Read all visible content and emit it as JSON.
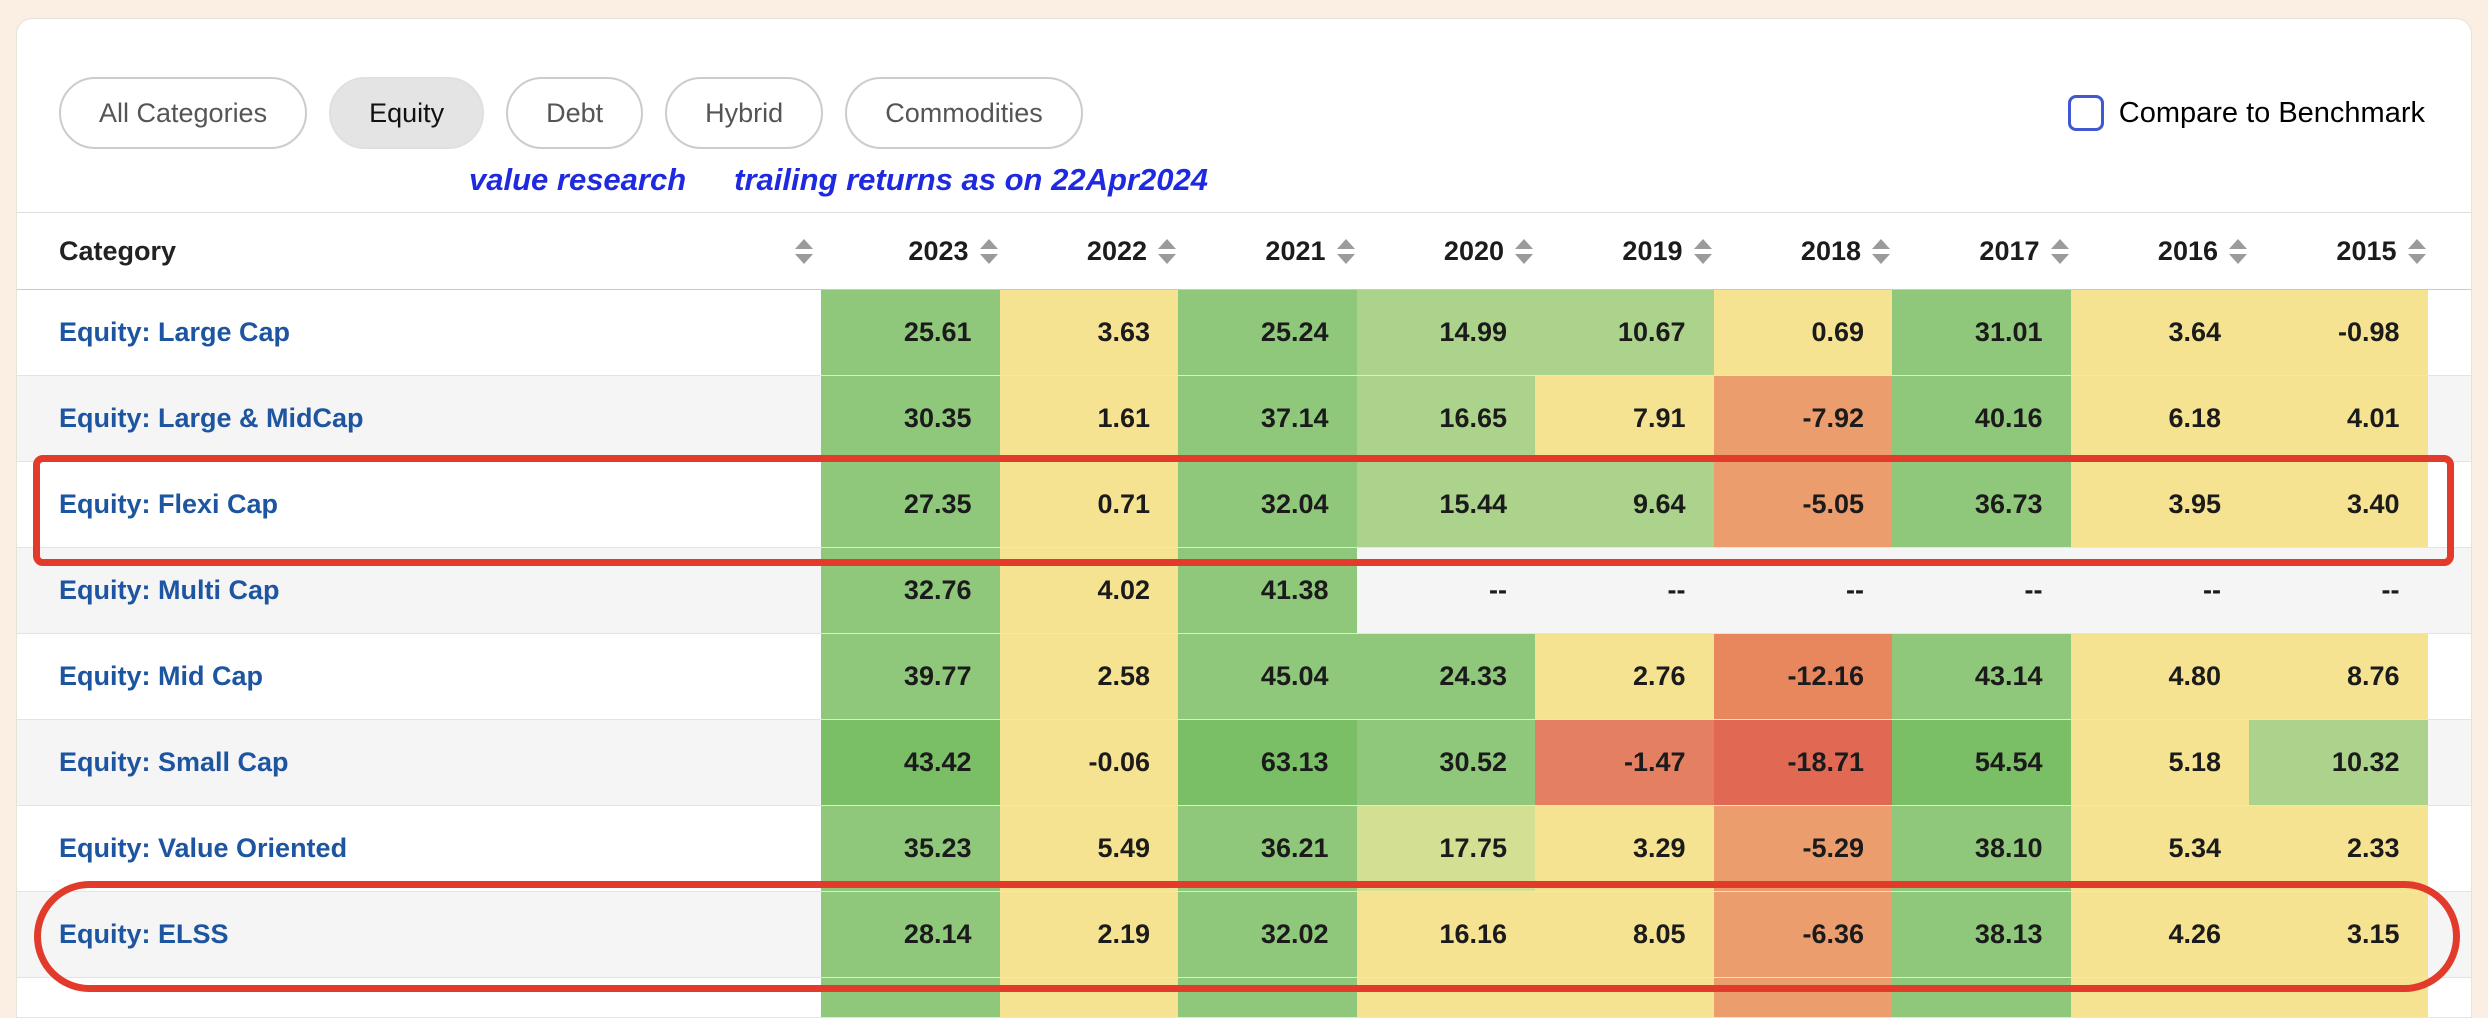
{
  "filters": {
    "pills": [
      {
        "label": "All Categories",
        "active": false
      },
      {
        "label": "Equity",
        "active": true
      },
      {
        "label": "Debt",
        "active": false
      },
      {
        "label": "Hybrid",
        "active": false
      },
      {
        "label": "Commodities",
        "active": false
      }
    ]
  },
  "benchmark": {
    "label": "Compare to Benchmark",
    "checked": false,
    "accent_color": "#4059d0"
  },
  "note": {
    "part1": "value research",
    "part2": "trailing returns as on 22Apr2024",
    "color": "#1f2ae0"
  },
  "table": {
    "category_header": "Category",
    "year_columns": [
      "2023",
      "2022",
      "2021",
      "2020",
      "2019",
      "2018",
      "2017",
      "2016",
      "2015"
    ],
    "empty_value": "--",
    "palette": {
      "g": "#8fc87b",
      "gs": "#7abf66",
      "gl": "#abd38b",
      "yg": "#d3e094",
      "y": "#f5e392",
      "o": "#eb9d6e",
      "od": "#e8865e",
      "rs": "#e47f61",
      "r": "#e16852",
      "w": "transparent"
    },
    "rows": [
      {
        "category": "Equity: Large Cap",
        "values": [
          "25.61",
          "3.63",
          "25.24",
          "14.99",
          "10.67",
          "0.69",
          "31.01",
          "3.64",
          "-0.98"
        ],
        "colors": [
          "g",
          "y",
          "g",
          "gl",
          "gl",
          "y",
          "g",
          "y",
          "y"
        ]
      },
      {
        "category": "Equity: Large & MidCap",
        "values": [
          "30.35",
          "1.61",
          "37.14",
          "16.65",
          "7.91",
          "-7.92",
          "40.16",
          "6.18",
          "4.01"
        ],
        "colors": [
          "g",
          "y",
          "g",
          "gl",
          "y",
          "o",
          "g",
          "y",
          "y"
        ]
      },
      {
        "category": "Equity: Flexi Cap",
        "values": [
          "27.35",
          "0.71",
          "32.04",
          "15.44",
          "9.64",
          "-5.05",
          "36.73",
          "3.95",
          "3.40"
        ],
        "colors": [
          "g",
          "y",
          "g",
          "gl",
          "gl",
          "o",
          "g",
          "y",
          "y"
        ]
      },
      {
        "category": "Equity: Multi Cap",
        "values": [
          "32.76",
          "4.02",
          "41.38",
          "--",
          "--",
          "--",
          "--",
          "--",
          "--"
        ],
        "colors": [
          "g",
          "y",
          "g",
          "w",
          "w",
          "w",
          "w",
          "w",
          "w"
        ]
      },
      {
        "category": "Equity: Mid Cap",
        "values": [
          "39.77",
          "2.58",
          "45.04",
          "24.33",
          "2.76",
          "-12.16",
          "43.14",
          "4.80",
          "8.76"
        ],
        "colors": [
          "g",
          "y",
          "g",
          "g",
          "y",
          "od",
          "g",
          "y",
          "y"
        ]
      },
      {
        "category": "Equity: Small Cap",
        "values": [
          "43.42",
          "-0.06",
          "63.13",
          "30.52",
          "-1.47",
          "-18.71",
          "54.54",
          "5.18",
          "10.32"
        ],
        "colors": [
          "gs",
          "y",
          "gs",
          "g",
          "rs",
          "r",
          "gs",
          "y",
          "gl"
        ]
      },
      {
        "category": "Equity: Value Oriented",
        "values": [
          "35.23",
          "5.49",
          "36.21",
          "17.75",
          "3.29",
          "-5.29",
          "38.10",
          "5.34",
          "2.33"
        ],
        "colors": [
          "g",
          "y",
          "g",
          "yg",
          "y",
          "o",
          "g",
          "y",
          "y"
        ]
      },
      {
        "category": "Equity: ELSS",
        "values": [
          "28.14",
          "2.19",
          "32.02",
          "16.16",
          "8.05",
          "-6.36",
          "38.13",
          "4.26",
          "3.15"
        ],
        "colors": [
          "g",
          "y",
          "g",
          "y",
          "y",
          "o",
          "g",
          "y",
          "y"
        ]
      }
    ],
    "partial_bottom_row_colors": [
      "g",
      "y",
      "g",
      "y",
      "y",
      "o",
      "g",
      "y",
      "y"
    ]
  },
  "highlights": {
    "color": "#e23b2c",
    "rectangle_target": "Equity: Flexi Cap",
    "oval_target": "Equity: ELSS"
  }
}
